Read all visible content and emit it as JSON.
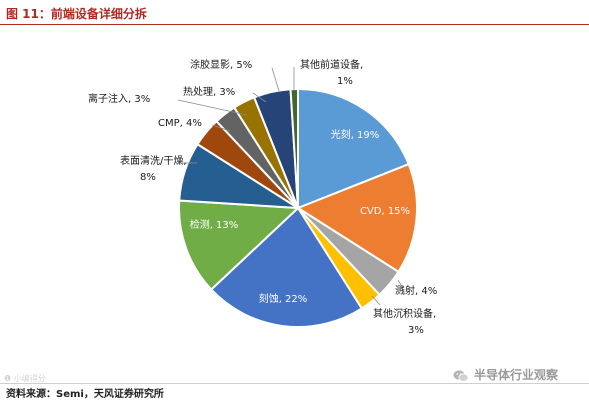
{
  "header": {
    "title": "图 11：前端设备详细分拆"
  },
  "footer": {
    "source": "资料来源：Semi，天风证券研究所"
  },
  "watermark": {
    "brand": "半导体行业观察",
    "faint_logo": "❶ 小编得分"
  },
  "chart_data": {
    "type": "pie",
    "title": "",
    "start_angle_deg": 0,
    "direction": "clockwise",
    "slices": [
      {
        "label": "光刻, 19%",
        "value": 19,
        "color": "#5b9bd5",
        "label_pos": "inside"
      },
      {
        "label": "CVD, 15%",
        "value": 15,
        "color": "#ed7d31",
        "label_pos": "inside"
      },
      {
        "label": "溅射, 4%",
        "value": 4,
        "color": "#a5a5a5",
        "label_pos": "outside"
      },
      {
        "label": "其他沉积设备, 3%",
        "value": 3,
        "color": "#ffc000",
        "label_pos": "outside"
      },
      {
        "label": "刻蚀, 22%",
        "value": 22,
        "color": "#4472c4",
        "label_pos": "inside"
      },
      {
        "label": "检测, 13%",
        "value": 13,
        "color": "#70ad47",
        "label_pos": "inside"
      },
      {
        "label": "表面清洗/干燥, 8%",
        "value": 8,
        "color": "#255e91",
        "label_pos": "outside"
      },
      {
        "label": "CMP, 4%",
        "value": 4,
        "color": "#9e480e",
        "label_pos": "outside"
      },
      {
        "label": "离子注入, 3%",
        "value": 3,
        "color": "#636363",
        "label_pos": "outside"
      },
      {
        "label": "热处理, 3%",
        "value": 3,
        "color": "#997300",
        "label_pos": "outside"
      },
      {
        "label": "涂胶显影, 5%",
        "value": 5,
        "color": "#264478",
        "label_pos": "outside"
      },
      {
        "label": "其他前道设备, 1%",
        "value": 1,
        "color": "#43682b",
        "label_pos": "outside"
      }
    ]
  }
}
